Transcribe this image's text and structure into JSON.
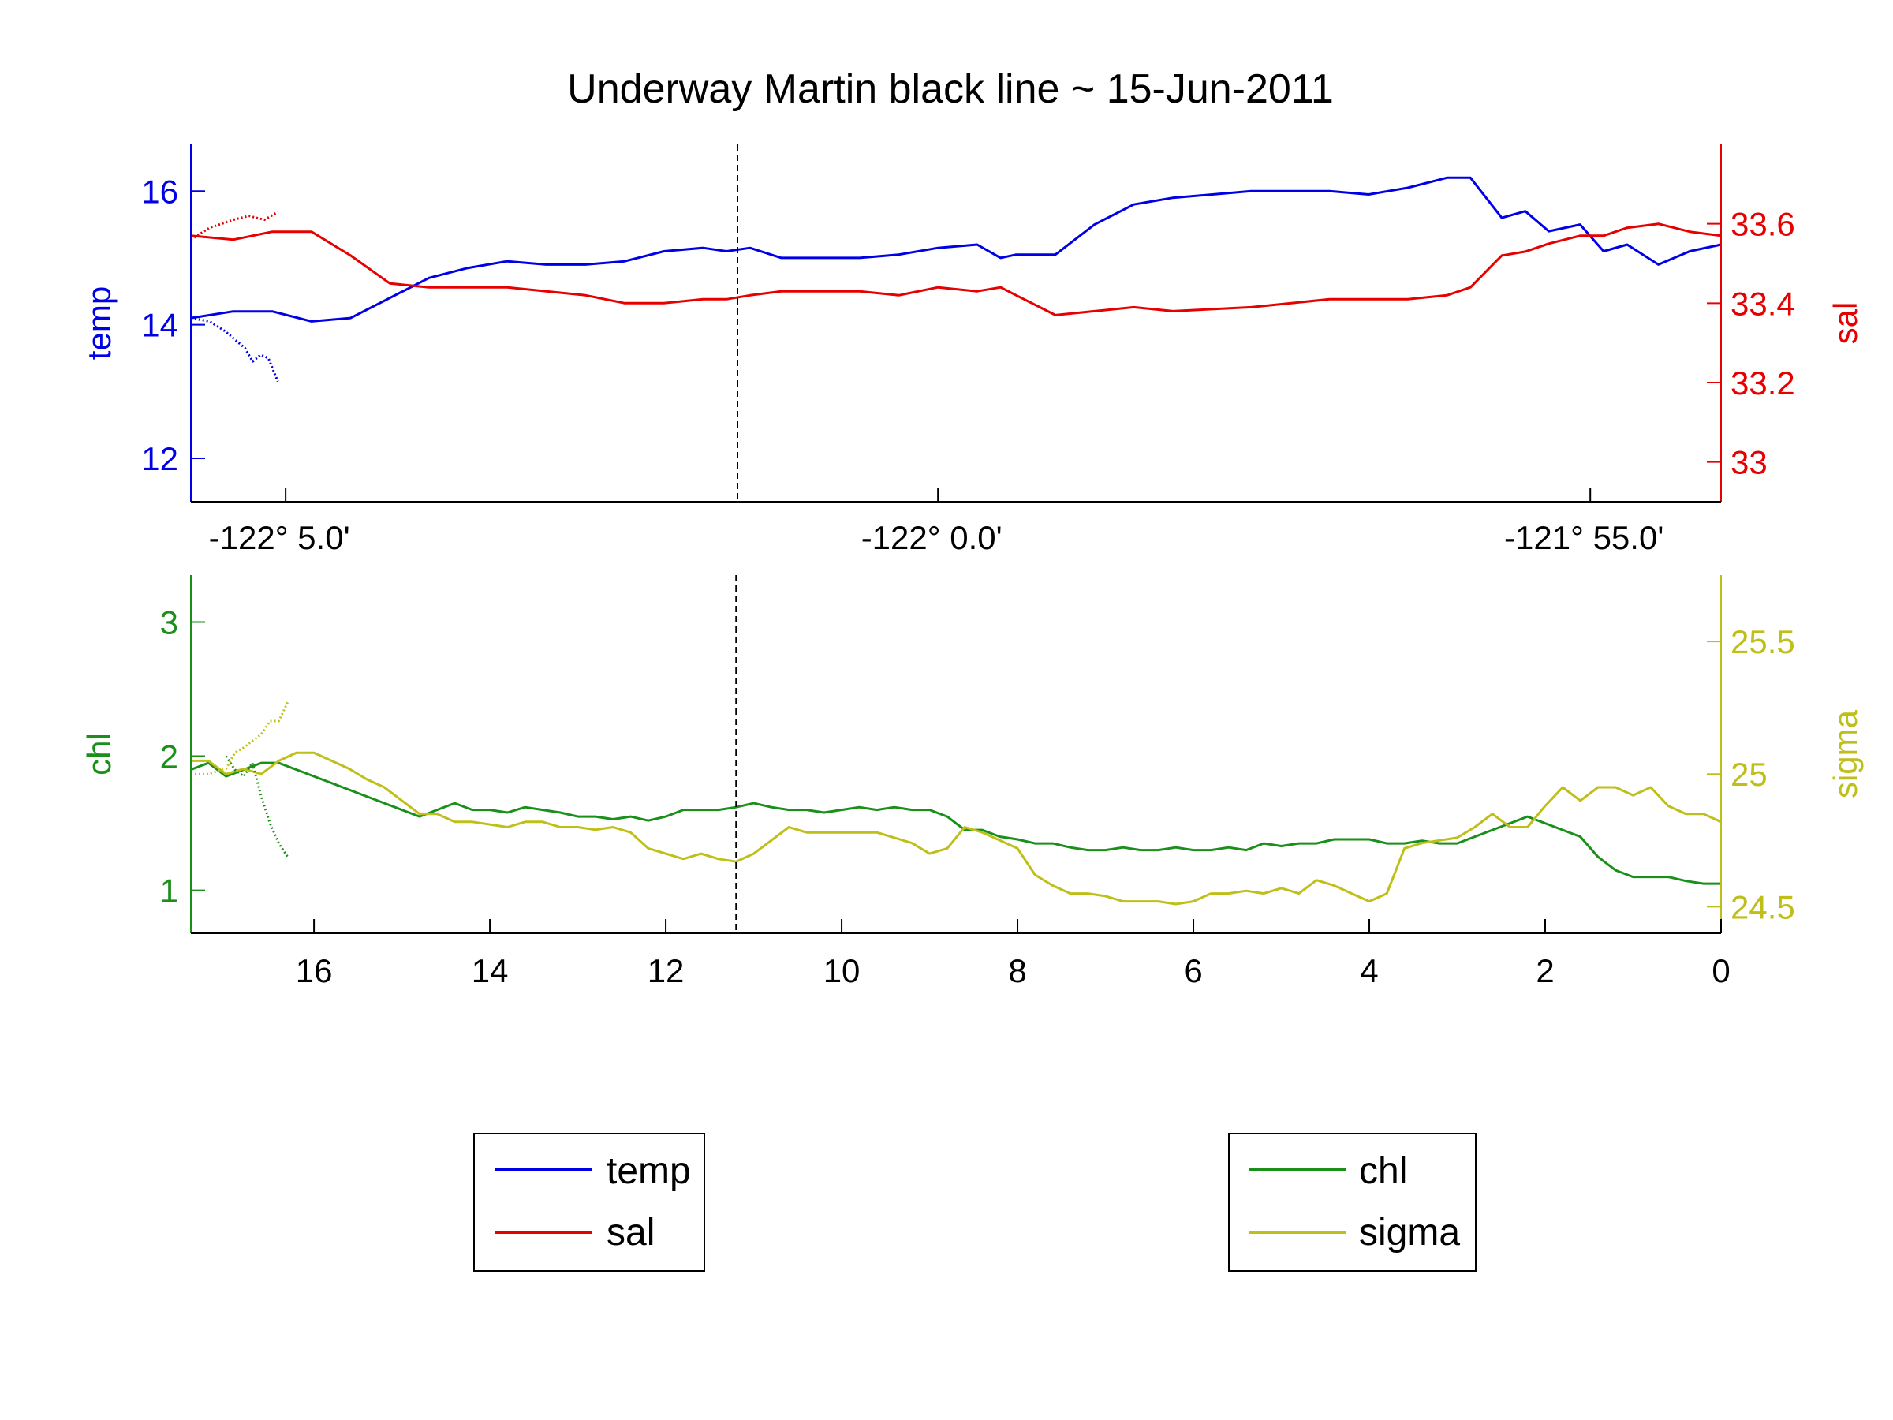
{
  "title": "Underway Martin black line ~ 15-Jun-2011",
  "colors": {
    "temp": "#0000e6",
    "sal": "#e60000",
    "chl": "#1a8f1a",
    "sigma": "#bfbf1a",
    "axis": "#000000"
  },
  "chart_data": [
    {
      "type": "line",
      "panel": "top",
      "title": "Underway Martin black line ~ 15-Jun-2011",
      "xlabel": "",
      "x_tick_labels": [
        "-122° 5.0'",
        "-122° 0.0'",
        "-121° 55.0'"
      ],
      "x_tick_values": [
        -122.0833,
        -122.0,
        -121.9167
      ],
      "xlim": [
        -122.0954,
        -121.9
      ],
      "vertical_marker_x": -122.0256,
      "left_axis": {
        "label": "temp",
        "ylim": [
          11.35,
          16.7
        ],
        "ticks": [
          12,
          14,
          16
        ]
      },
      "right_axis": {
        "label": "sal",
        "ylim": [
          32.9,
          33.8
        ],
        "ticks": [
          33,
          33.2,
          33.4,
          33.6
        ]
      },
      "series": [
        {
          "name": "temp",
          "axis": "left",
          "style": "solid",
          "x": [
            -122.0954,
            -122.09,
            -122.085,
            -122.08,
            -122.075,
            -122.07,
            -122.065,
            -122.06,
            -122.055,
            -122.05,
            -122.045,
            -122.04,
            -122.035,
            -122.03,
            -122.027,
            -122.024,
            -122.02,
            -122.015,
            -122.01,
            -122.005,
            -122.0,
            -121.995,
            -121.992,
            -121.99,
            -121.985,
            -121.98,
            -121.975,
            -121.97,
            -121.96,
            -121.95,
            -121.945,
            -121.94,
            -121.935,
            -121.932,
            -121.928,
            -121.925,
            -121.922,
            -121.918,
            -121.915,
            -121.912,
            -121.908,
            -121.904,
            -121.9
          ],
          "y": [
            14.1,
            14.2,
            14.2,
            14.05,
            14.1,
            14.4,
            14.7,
            14.85,
            14.95,
            14.9,
            14.9,
            14.95,
            15.1,
            15.15,
            15.1,
            15.15,
            15.0,
            15.0,
            15.0,
            15.05,
            15.15,
            15.2,
            15.0,
            15.05,
            15.05,
            15.5,
            15.8,
            15.9,
            16.0,
            16.0,
            15.95,
            16.05,
            16.2,
            16.2,
            15.6,
            15.7,
            15.4,
            15.5,
            15.1,
            15.2,
            14.9,
            15.1,
            15.2
          ]
        },
        {
          "name": "sal",
          "axis": "right",
          "style": "solid",
          "x": [
            -122.0954,
            -122.09,
            -122.085,
            -122.08,
            -122.075,
            -122.07,
            -122.065,
            -122.06,
            -122.055,
            -122.05,
            -122.045,
            -122.04,
            -122.035,
            -122.03,
            -122.027,
            -122.024,
            -122.02,
            -122.015,
            -122.01,
            -122.005,
            -122.0,
            -121.995,
            -121.992,
            -121.99,
            -121.985,
            -121.98,
            -121.975,
            -121.97,
            -121.96,
            -121.95,
            -121.945,
            -121.94,
            -121.935,
            -121.932,
            -121.928,
            -121.925,
            -121.922,
            -121.918,
            -121.915,
            -121.912,
            -121.908,
            -121.904,
            -121.9
          ],
          "y": [
            33.57,
            33.56,
            33.58,
            33.58,
            33.52,
            33.45,
            33.44,
            33.44,
            33.44,
            33.43,
            33.42,
            33.4,
            33.4,
            33.41,
            33.41,
            33.42,
            33.43,
            33.43,
            33.43,
            33.42,
            33.44,
            33.43,
            33.44,
            33.42,
            33.37,
            33.38,
            33.39,
            33.38,
            33.39,
            33.41,
            33.41,
            33.41,
            33.42,
            33.44,
            33.52,
            33.53,
            33.55,
            33.57,
            33.57,
            33.59,
            33.6,
            33.58,
            33.57
          ]
        },
        {
          "name": "temp (dotted)",
          "axis": "left",
          "style": "dotted",
          "x": [
            -122.0954,
            -122.093,
            -122.091,
            -122.0895,
            -122.0885,
            -122.0875,
            -122.0865,
            -122.0855,
            -122.0843
          ],
          "y": [
            14.1,
            14.05,
            13.9,
            13.75,
            13.65,
            13.45,
            13.55,
            13.5,
            13.15
          ]
        },
        {
          "name": "sal (dotted)",
          "axis": "right",
          "style": "dotted",
          "x": [
            -122.0954,
            -122.093,
            -122.09,
            -122.088,
            -122.086,
            -122.0843
          ],
          "y": [
            33.56,
            33.59,
            33.61,
            33.62,
            33.61,
            33.63
          ]
        }
      ]
    },
    {
      "type": "line",
      "panel": "bottom",
      "xlabel": "",
      "x_ticks": [
        16,
        14,
        12,
        10,
        8,
        6,
        4,
        2,
        0
      ],
      "xlim": [
        17.4,
        0
      ],
      "vertical_marker_x": 11.2,
      "left_axis": {
        "label": "chl",
        "ylim": [
          0.68,
          3.35
        ],
        "ticks": [
          1,
          2,
          3
        ]
      },
      "right_axis": {
        "label": "sigma",
        "ylim": [
          24.4,
          25.75
        ],
        "ticks": [
          24.5,
          25,
          25.5
        ]
      },
      "series": [
        {
          "name": "chl",
          "axis": "left",
          "style": "solid",
          "x": [
            17.4,
            17.2,
            17.0,
            16.8,
            16.6,
            16.4,
            16.2,
            16.0,
            15.8,
            15.6,
            15.4,
            15.2,
            15.0,
            14.8,
            14.6,
            14.4,
            14.2,
            14.0,
            13.8,
            13.6,
            13.4,
            13.2,
            13.0,
            12.8,
            12.6,
            12.4,
            12.2,
            12.0,
            11.8,
            11.6,
            11.4,
            11.2,
            11.0,
            10.8,
            10.6,
            10.4,
            10.2,
            10.0,
            9.8,
            9.6,
            9.4,
            9.2,
            9.0,
            8.8,
            8.6,
            8.4,
            8.2,
            8.0,
            7.8,
            7.6,
            7.4,
            7.2,
            7.0,
            6.8,
            6.6,
            6.4,
            6.2,
            6.0,
            5.8,
            5.6,
            5.4,
            5.2,
            5.0,
            4.8,
            4.6,
            4.4,
            4.2,
            4.0,
            3.8,
            3.6,
            3.4,
            3.2,
            3.0,
            2.8,
            2.6,
            2.4,
            2.2,
            2.0,
            1.8,
            1.6,
            1.4,
            1.2,
            1.0,
            0.8,
            0.6,
            0.4,
            0.2,
            0.0
          ],
          "y": [
            1.9,
            1.95,
            1.85,
            1.9,
            1.95,
            1.95,
            1.9,
            1.85,
            1.8,
            1.75,
            1.7,
            1.65,
            1.6,
            1.55,
            1.6,
            1.65,
            1.6,
            1.6,
            1.58,
            1.62,
            1.6,
            1.58,
            1.55,
            1.55,
            1.53,
            1.55,
            1.52,
            1.55,
            1.6,
            1.6,
            1.6,
            1.62,
            1.65,
            1.62,
            1.6,
            1.6,
            1.58,
            1.6,
            1.62,
            1.6,
            1.62,
            1.6,
            1.6,
            1.55,
            1.45,
            1.45,
            1.4,
            1.38,
            1.35,
            1.35,
            1.32,
            1.3,
            1.3,
            1.32,
            1.3,
            1.3,
            1.32,
            1.3,
            1.3,
            1.32,
            1.3,
            1.35,
            1.33,
            1.35,
            1.35,
            1.38,
            1.38,
            1.38,
            1.35,
            1.35,
            1.37,
            1.35,
            1.35,
            1.4,
            1.45,
            1.5,
            1.55,
            1.5,
            1.45,
            1.4,
            1.25,
            1.15,
            1.1,
            1.1,
            1.1,
            1.07,
            1.05,
            1.05
          ]
        },
        {
          "name": "sigma",
          "axis": "right",
          "style": "solid",
          "x": [
            17.4,
            17.2,
            17.0,
            16.8,
            16.6,
            16.4,
            16.2,
            16.0,
            15.8,
            15.6,
            15.4,
            15.2,
            15.0,
            14.8,
            14.6,
            14.4,
            14.2,
            14.0,
            13.8,
            13.6,
            13.4,
            13.2,
            13.0,
            12.8,
            12.6,
            12.4,
            12.2,
            12.0,
            11.8,
            11.6,
            11.4,
            11.2,
            11.0,
            10.8,
            10.6,
            10.4,
            10.2,
            10.0,
            9.8,
            9.6,
            9.4,
            9.2,
            9.0,
            8.8,
            8.6,
            8.4,
            8.2,
            8.0,
            7.8,
            7.6,
            7.4,
            7.2,
            7.0,
            6.8,
            6.6,
            6.4,
            6.2,
            6.0,
            5.8,
            5.6,
            5.4,
            5.2,
            5.0,
            4.8,
            4.6,
            4.4,
            4.2,
            4.0,
            3.8,
            3.6,
            3.4,
            3.2,
            3.0,
            2.8,
            2.6,
            2.4,
            2.2,
            2.0,
            1.8,
            1.6,
            1.4,
            1.2,
            1.0,
            0.8,
            0.6,
            0.4,
            0.2,
            0.0
          ],
          "y": [
            25.05,
            25.05,
            25.0,
            25.02,
            25.0,
            25.05,
            25.08,
            25.08,
            25.05,
            25.02,
            24.98,
            24.95,
            24.9,
            24.85,
            24.85,
            24.82,
            24.82,
            24.81,
            24.8,
            24.82,
            24.82,
            24.8,
            24.8,
            24.79,
            24.8,
            24.78,
            24.72,
            24.7,
            24.68,
            24.7,
            24.68,
            24.67,
            24.7,
            24.75,
            24.8,
            24.78,
            24.78,
            24.78,
            24.78,
            24.78,
            24.76,
            24.74,
            24.7,
            24.72,
            24.8,
            24.78,
            24.75,
            24.72,
            24.62,
            24.58,
            24.55,
            24.55,
            24.54,
            24.52,
            24.52,
            24.52,
            24.51,
            24.52,
            24.55,
            24.55,
            24.56,
            24.55,
            24.57,
            24.55,
            24.6,
            24.58,
            24.55,
            24.52,
            24.55,
            24.72,
            24.74,
            24.75,
            24.76,
            24.8,
            24.85,
            24.8,
            24.8,
            24.88,
            24.95,
            24.9,
            24.95,
            24.95,
            24.92,
            24.95,
            24.88,
            24.85,
            24.85,
            24.82
          ]
        },
        {
          "name": "chl (dotted)",
          "axis": "left",
          "style": "dotted",
          "x": [
            17.0,
            16.9,
            16.8,
            16.7,
            16.6,
            16.5,
            16.4,
            16.3
          ],
          "y": [
            2.0,
            1.9,
            1.85,
            1.95,
            1.7,
            1.5,
            1.35,
            1.25
          ]
        },
        {
          "name": "sigma (dotted)",
          "axis": "right",
          "style": "dotted",
          "x": [
            17.4,
            17.2,
            17.0,
            16.9,
            16.8,
            16.6,
            16.5,
            16.4,
            16.3
          ],
          "y": [
            25.0,
            25.0,
            25.02,
            25.08,
            25.1,
            25.15,
            25.2,
            25.2,
            25.27
          ]
        }
      ]
    }
  ],
  "legends": [
    {
      "items": [
        {
          "label": "temp",
          "color": "#0000e6"
        },
        {
          "label": "sal",
          "color": "#e60000"
        }
      ]
    },
    {
      "items": [
        {
          "label": "chl",
          "color": "#1a8f1a"
        },
        {
          "label": "sigma",
          "color": "#bfbf1a"
        }
      ]
    }
  ]
}
